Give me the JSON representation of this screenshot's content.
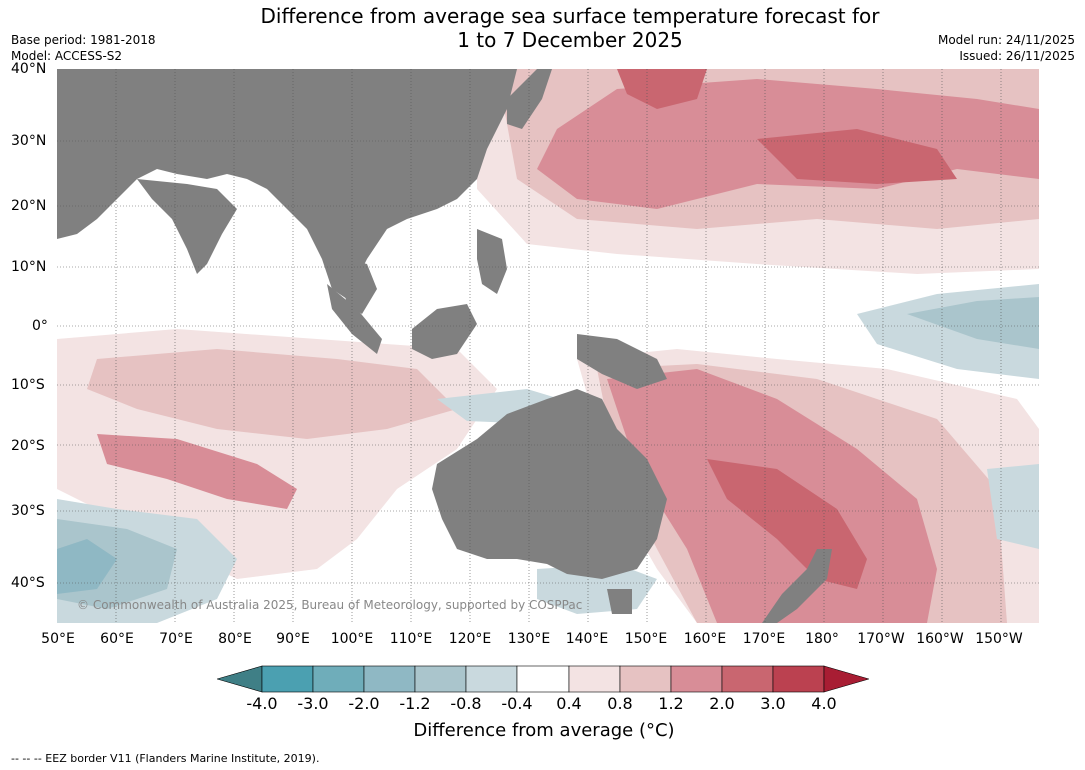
{
  "title_line1": "Difference from average sea surface temperature forecast for",
  "title_line2": "1 to 7 December 2025",
  "base_period": "Base period: 1981-2018",
  "model": "Model: ACCESS-S2",
  "model_run": "Model run: 24/11/2025",
  "issued": "Issued: 26/11/2025",
  "lat_labels": [
    "40°N",
    "30°N",
    "20°N",
    "10°N",
    "0°",
    "10°S",
    "20°S",
    "30°S",
    "40°S"
  ],
  "lon_labels": [
    "50°E",
    "60°E",
    "70°E",
    "80°E",
    "90°E",
    "100°E",
    "110°E",
    "120°E",
    "130°E",
    "140°E",
    "150°E",
    "160°E",
    "170°E",
    "180°",
    "170°W",
    "160°W",
    "150°W"
  ],
  "copyright": "© Commonwealth of Australia 2025, Bureau of Meteorology, supported by COSPPac",
  "colorbar": {
    "ticks": [
      "-4.0",
      "-3.0",
      "-2.0",
      "-1.2",
      "-0.8",
      "-0.4",
      "0.4",
      "0.8",
      "1.2",
      "2.0",
      "3.0",
      "4.0"
    ],
    "colors": [
      "#3f7f86",
      "#4ba0b1",
      "#6fadba",
      "#8fb8c4",
      "#aac5cc",
      "#c9d9de",
      "#ffffff",
      "#f3e3e3",
      "#e6c2c2",
      "#d88d97",
      "#c96670",
      "#bb4150",
      "#a81d33"
    ],
    "label": "Difference from average ($^\\circ$C)",
    "label_text": "Difference from average (°C)"
  },
  "footnote": "-- -- -- EEZ border V11 (Flanders Marine Institute, 2019).",
  "palette": {
    "land": "#808080",
    "warm1": "#f3e3e3",
    "warm2": "#e6c2c2",
    "warm3": "#d88d97",
    "warm4": "#c96670",
    "cool1": "#c9d9de",
    "cool2": "#aac5cc",
    "cool3": "#8fb8c4"
  }
}
